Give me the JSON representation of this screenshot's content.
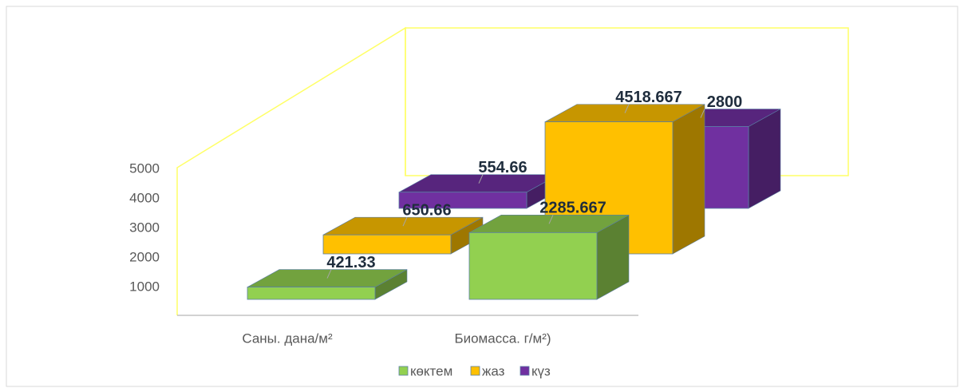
{
  "chart_data": {
    "type": "bar",
    "categories": [
      "Саны. дана/м²",
      "Биомасса. г/м²)"
    ],
    "series": [
      {
        "name": "көктем",
        "color": "#92d050",
        "values": [
          421.33,
          2285.667
        ]
      },
      {
        "name": "жаз",
        "color": "#ffc000",
        "values": [
          650.66,
          4518.667
        ]
      },
      {
        "name": "күз",
        "color": "#7030a0",
        "values": [
          554.66,
          2800
        ]
      }
    ],
    "ylim": [
      0,
      5000
    ],
    "yticks": [
      1000,
      2000,
      3000,
      4000,
      5000
    ],
    "legend": "bottom"
  }
}
